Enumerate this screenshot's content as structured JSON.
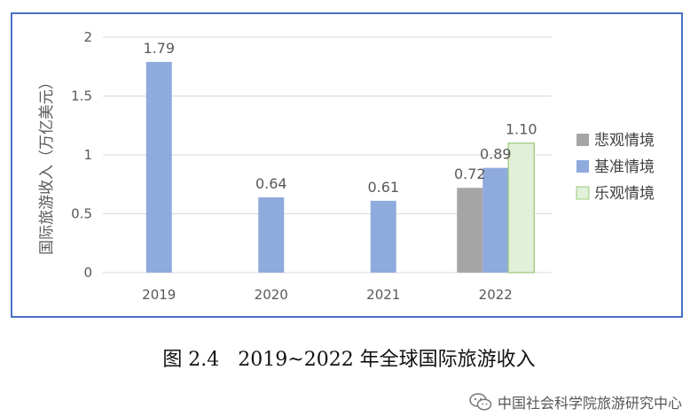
{
  "chart_data": {
    "type": "bar",
    "categories": [
      "2019",
      "2020",
      "2021",
      "2022"
    ],
    "ylabel": "国际旅游收入（万亿美元）",
    "ylim": [
      0,
      2
    ],
    "yticks": [
      "0",
      "0.5",
      "1",
      "1.5",
      "2"
    ],
    "grid": true,
    "legend_position": "right",
    "series": [
      {
        "name": "悲观情境",
        "color": "#a5a5a5",
        "values": [
          null,
          null,
          null,
          0.72
        ],
        "labels": [
          null,
          null,
          null,
          "0.72"
        ]
      },
      {
        "name": "基准情境",
        "color": "#8faadc",
        "values": [
          1.79,
          0.64,
          0.61,
          0.89
        ],
        "labels": [
          "1.79",
          "0.64",
          "0.61",
          "0.89"
        ]
      },
      {
        "name": "乐观情境",
        "color": "#e2f0d9",
        "values": [
          null,
          null,
          null,
          1.1
        ],
        "labels": [
          null,
          null,
          null,
          "1.10"
        ]
      }
    ]
  },
  "caption": {
    "number": "图 2.4",
    "text": "2019~2022 年全球国际旅游收入"
  },
  "watermark": {
    "icon": "wechat-icon",
    "text": "中国社会科学院旅游研究中心"
  }
}
